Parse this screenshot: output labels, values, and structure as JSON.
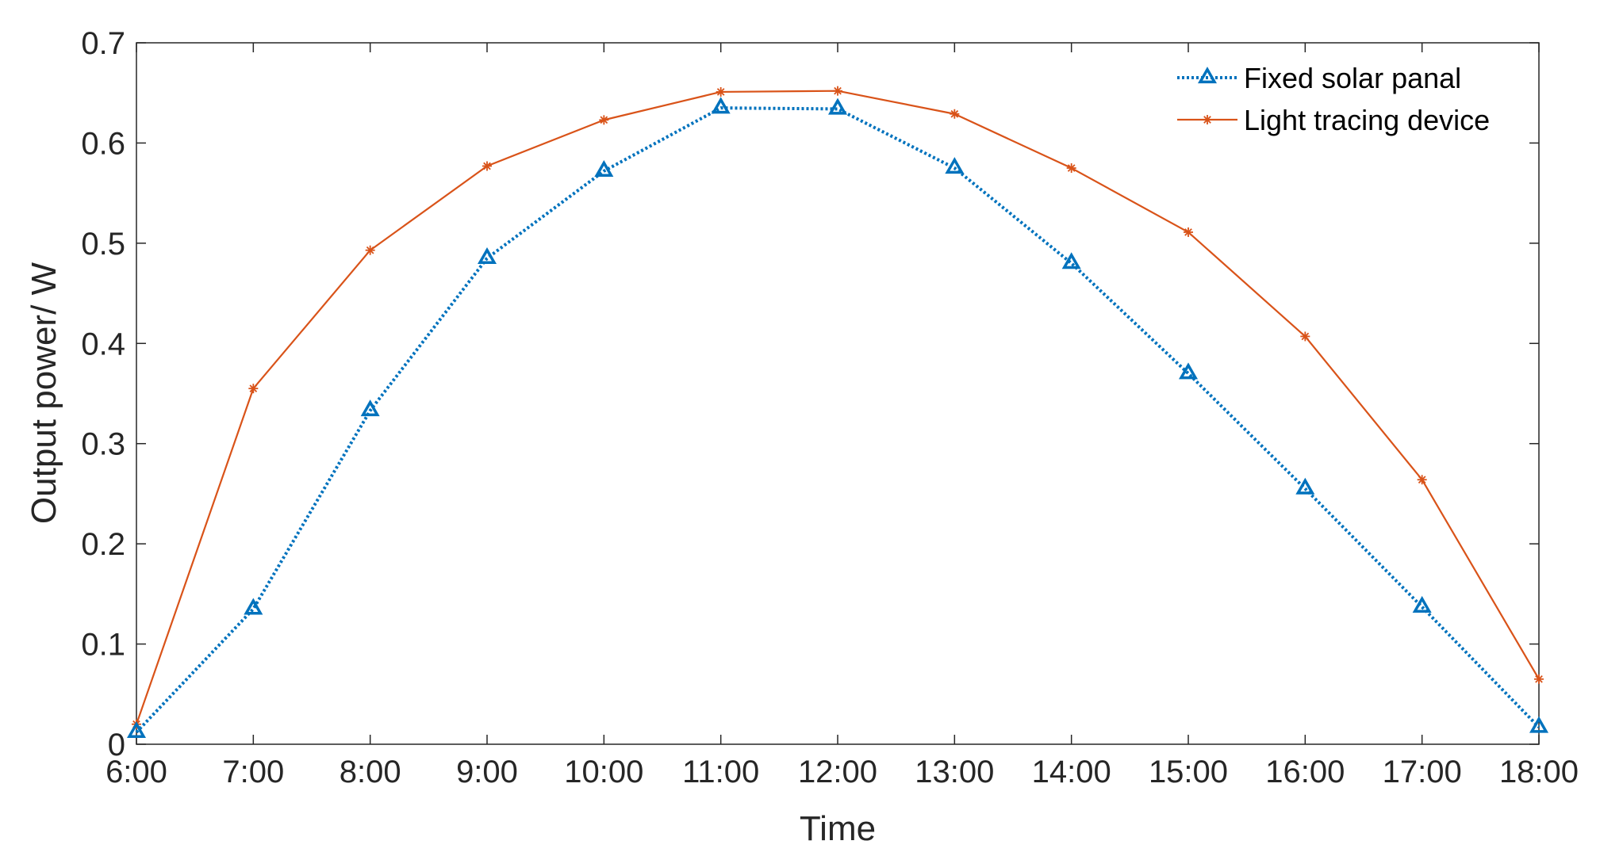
{
  "chart_data": {
    "type": "line",
    "title": "",
    "xlabel": "Time",
    "ylabel": "Output power/ W",
    "categories": [
      "6:00",
      "7:00",
      "8:00",
      "9:00",
      "10:00",
      "11:00",
      "12:00",
      "13:00",
      "14:00",
      "15:00",
      "16:00",
      "17:00",
      "18:00"
    ],
    "ylim": [
      0,
      0.7
    ],
    "yticks": [
      "0",
      "0.1",
      "0.2",
      "0.3",
      "0.4",
      "0.5",
      "0.6",
      "0.7"
    ],
    "grid": false,
    "legend_position": "top-right",
    "series": [
      {
        "name": "Fixed solar panal",
        "color": "#0072BD",
        "line_style": "dotted",
        "marker": "triangle",
        "values": [
          0.012,
          0.135,
          0.333,
          0.485,
          0.572,
          0.635,
          0.634,
          0.575,
          0.48,
          0.37,
          0.255,
          0.137,
          0.017
        ]
      },
      {
        "name": "Light tracing device",
        "color": "#D95319",
        "line_style": "solid",
        "marker": "asterisk",
        "values": [
          0.02,
          0.355,
          0.493,
          0.577,
          0.623,
          0.651,
          0.652,
          0.629,
          0.575,
          0.511,
          0.407,
          0.264,
          0.065
        ]
      }
    ]
  }
}
